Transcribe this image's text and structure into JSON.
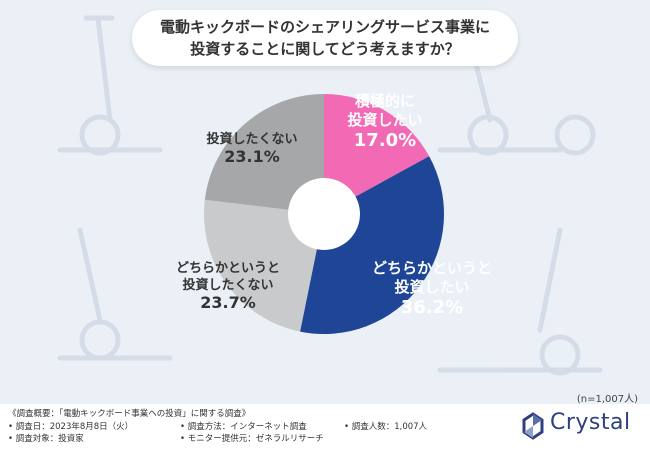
{
  "title": {
    "line1": "電動キックボードのシェアリングサービス事業に",
    "line2": "投資することに関してどう考えますか？"
  },
  "chart_data": {
    "type": "pie",
    "series": [
      {
        "label": [
          "積極的に",
          "投資したい"
        ],
        "value": 17.0,
        "display": "17.0%",
        "color": "#f26ab3",
        "text_color": "#ffffff"
      },
      {
        "label": [
          "どちらかというと",
          "投資したい"
        ],
        "value": 36.2,
        "display": "36.2%",
        "color": "#1e4596",
        "text_color": "#ffffff"
      },
      {
        "label": [
          "どちらかというと",
          "投資したくない"
        ],
        "value": 23.7,
        "display": "23.7%",
        "color": "#c9cacc",
        "text_color": "#333333"
      },
      {
        "label": [
          "投資したくない"
        ],
        "value": 23.1,
        "display": "23.1%",
        "color": "#a6a7a9",
        "text_color": "#333333"
      }
    ]
  },
  "sample_size": "(n=1,007人)",
  "footer": {
    "summary": "《調査概要：「電動キックボード事業への投資」に関する調査》",
    "date": "• 調査日：2023年8月8日（火）",
    "method": "• 調査方法：インターネット調査",
    "count": "• 調査人数：1,007人",
    "target": "• 調査対象：投資家",
    "provider": "• モニター提供元：ゼネラルリサーチ"
  },
  "brand": {
    "name": "Crystal",
    "color": "#2f3f7f"
  }
}
